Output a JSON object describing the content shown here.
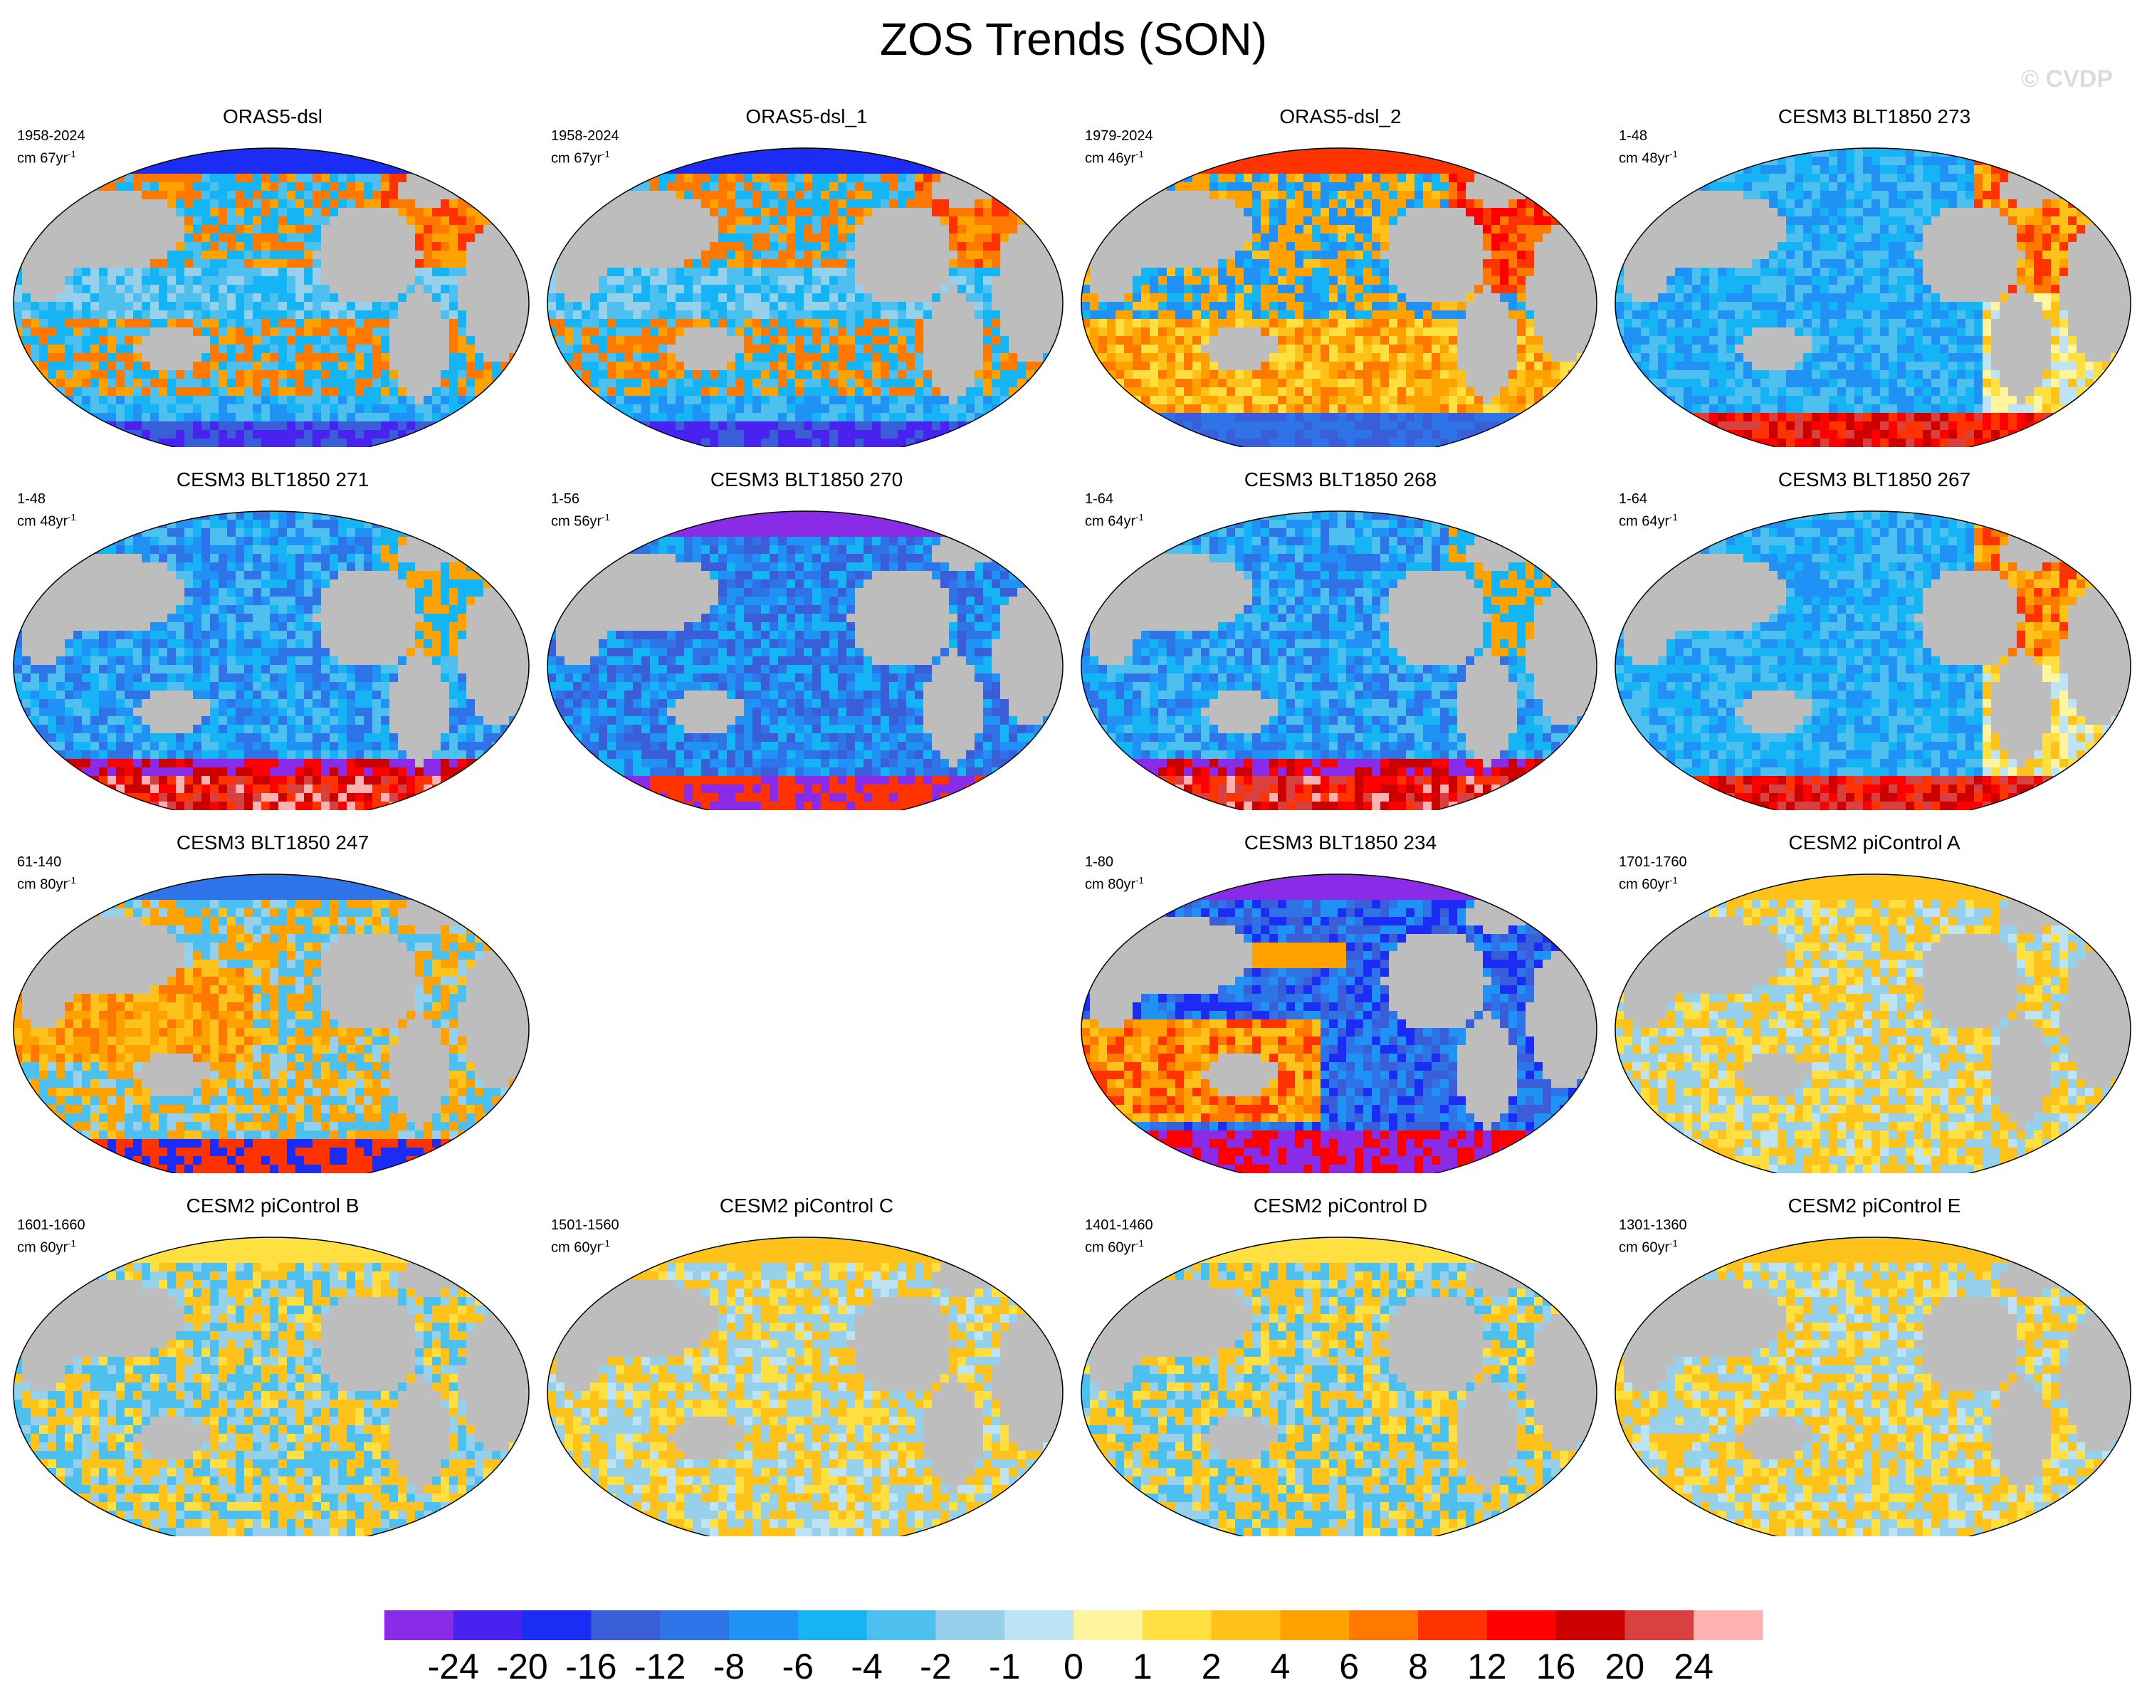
{
  "title": "ZOS Trends (SON)",
  "watermark": "© CVDP",
  "chart_data": {
    "type": "heatmap",
    "description_units": "cm per period (trend)",
    "panels": [
      {
        "title": "ORAS5-dsl",
        "period": "1958-2024",
        "units": "cm 67yr",
        "units_sup": "-1",
        "grid": [
          0,
          0
        ],
        "pattern": "oras1"
      },
      {
        "title": "ORAS5-dsl_1",
        "period": "1958-2024",
        "units": "cm 67yr",
        "units_sup": "-1",
        "grid": [
          0,
          1
        ],
        "pattern": "oras1"
      },
      {
        "title": "ORAS5-dsl_2",
        "period": "1979-2024",
        "units": "cm 46yr",
        "units_sup": "-1",
        "grid": [
          0,
          2
        ],
        "pattern": "oras2"
      },
      {
        "title": "CESM3 BLT1850 273",
        "period": "1-48",
        "units": "cm 48yr",
        "units_sup": "-1",
        "grid": [
          0,
          3
        ],
        "pattern": "cesm3a"
      },
      {
        "title": "CESM3 BLT1850 271",
        "period": "1-48",
        "units": "cm 48yr",
        "units_sup": "-1",
        "grid": [
          1,
          0
        ],
        "pattern": "cesm3b"
      },
      {
        "title": "CESM3 BLT1850 270",
        "period": "1-56",
        "units": "cm 56yr",
        "units_sup": "-1",
        "grid": [
          1,
          1
        ],
        "pattern": "cesm3c"
      },
      {
        "title": "CESM3 BLT1850 268",
        "period": "1-64",
        "units": "cm 64yr",
        "units_sup": "-1",
        "grid": [
          1,
          2
        ],
        "pattern": "cesm3b"
      },
      {
        "title": "CESM3 BLT1850 267",
        "period": "1-64",
        "units": "cm 64yr",
        "units_sup": "-1",
        "grid": [
          1,
          3
        ],
        "pattern": "cesm3a"
      },
      {
        "title": "CESM3 BLT1850 247",
        "period": "61-140",
        "units": "cm 80yr",
        "units_sup": "-1",
        "grid": [
          2,
          0
        ],
        "pattern": "cesm3d"
      },
      {
        "title": "CESM3 BLT1850 234",
        "period": "1-80",
        "units": "cm 80yr",
        "units_sup": "-1",
        "grid": [
          2,
          2
        ],
        "pattern": "cesm3e"
      },
      {
        "title": "CESM2 piControl A",
        "period": "1701-1760",
        "units": "cm 60yr",
        "units_sup": "-1",
        "grid": [
          2,
          3
        ],
        "pattern": "cesm2"
      },
      {
        "title": "CESM2 piControl B",
        "period": "1601-1660",
        "units": "cm 60yr",
        "units_sup": "-1",
        "grid": [
          3,
          0
        ],
        "pattern": "cesm2b"
      },
      {
        "title": "CESM2 piControl C",
        "period": "1501-1560",
        "units": "cm 60yr",
        "units_sup": "-1",
        "grid": [
          3,
          1
        ],
        "pattern": "cesm2"
      },
      {
        "title": "CESM2 piControl D",
        "period": "1401-1460",
        "units": "cm 60yr",
        "units_sup": "-1",
        "grid": [
          3,
          2
        ],
        "pattern": "cesm2b"
      },
      {
        "title": "CESM2 piControl E",
        "period": "1301-1360",
        "units": "cm 60yr",
        "units_sup": "-1",
        "grid": [
          3,
          3
        ],
        "pattern": "cesm2"
      }
    ],
    "colorbar": {
      "labels": [
        "-24",
        "-20",
        "-16",
        "-12",
        "-8",
        "-6",
        "-4",
        "-2",
        "-1",
        "0",
        "1",
        "2",
        "4",
        "6",
        "8",
        "12",
        "16",
        "20",
        "24"
      ],
      "colors": [
        "#8a2be8",
        "#4a22f0",
        "#1b2cf5",
        "#3a5ed8",
        "#2e74e8",
        "#2091f5",
        "#14b4f5",
        "#4ec0f0",
        "#96d0ea",
        "#bde3f5",
        "#fff5a0",
        "#ffe040",
        "#ffc21a",
        "#ffa200",
        "#ff7800",
        "#ff3300",
        "#ff0000",
        "#cc0000",
        "#d94040",
        "#ffb0b0"
      ]
    }
  },
  "colors": {
    "land": "#bdbdbd",
    "ocean_edge": "#000000",
    "ice": "#ffffff"
  }
}
